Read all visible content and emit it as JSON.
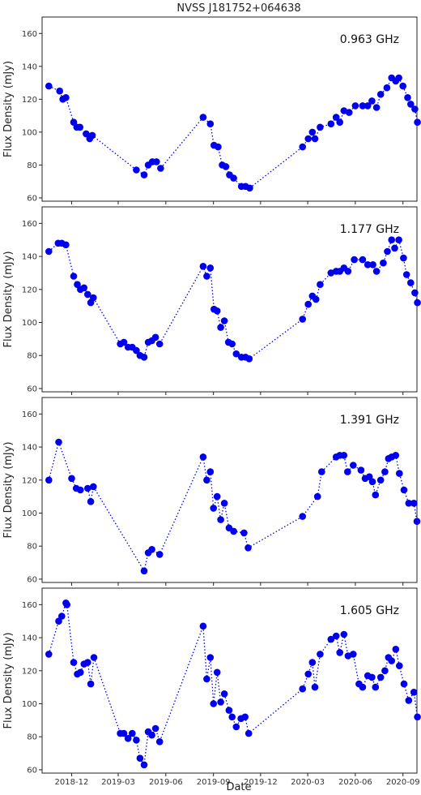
{
  "figure": {
    "title": "NVSS J181752+064638",
    "xlabel": "Date",
    "ylabel": "Flux Density (mJy)"
  },
  "chart_data": {
    "type": "scatter",
    "line_style": "dotted",
    "marker": "filled-circle",
    "color": "#0000ee",
    "x_ticks": [
      "2018-12",
      "2019-03",
      "2019-06",
      "2019-09",
      "2019-12",
      "2020-03",
      "2020-06",
      "2020-09"
    ],
    "xlim": [
      "2018-10-05",
      "2020-09-28"
    ],
    "ylim": [
      58,
      170
    ],
    "y_ticks": [
      60,
      80,
      100,
      120,
      140,
      160
    ],
    "panels": [
      {
        "label": "0.963 GHz",
        "points": [
          [
            "2018-10-18",
            128
          ],
          [
            "2018-11-08",
            125
          ],
          [
            "2018-11-14",
            120
          ],
          [
            "2018-11-20",
            121
          ],
          [
            "2018-12-05",
            106
          ],
          [
            "2018-12-11",
            103
          ],
          [
            "2018-12-17",
            103
          ],
          [
            "2018-12-29",
            99
          ],
          [
            "2019-01-05",
            96
          ],
          [
            "2019-01-10",
            98
          ],
          [
            "2019-04-05",
            77
          ],
          [
            "2019-04-20",
            74
          ],
          [
            "2019-04-28",
            80
          ],
          [
            "2019-05-06",
            82
          ],
          [
            "2019-05-14",
            82
          ],
          [
            "2019-05-22",
            78
          ],
          [
            "2019-08-12",
            109
          ],
          [
            "2019-08-26",
            105
          ],
          [
            "2019-09-02",
            92
          ],
          [
            "2019-09-10",
            91
          ],
          [
            "2019-09-18",
            80
          ],
          [
            "2019-09-25",
            79
          ],
          [
            "2019-10-02",
            74
          ],
          [
            "2019-10-10",
            72
          ],
          [
            "2019-10-25",
            67
          ],
          [
            "2019-11-02",
            67
          ],
          [
            "2019-11-10",
            66
          ],
          [
            "2020-02-20",
            91
          ],
          [
            "2020-03-02",
            96
          ],
          [
            "2020-03-10",
            100
          ],
          [
            "2020-03-15",
            96
          ],
          [
            "2020-03-25",
            103
          ],
          [
            "2020-04-15",
            105
          ],
          [
            "2020-04-25",
            109
          ],
          [
            "2020-05-02",
            106
          ],
          [
            "2020-05-10",
            113
          ],
          [
            "2020-05-20",
            112
          ],
          [
            "2020-06-01",
            116
          ],
          [
            "2020-06-15",
            116
          ],
          [
            "2020-06-25",
            116
          ],
          [
            "2020-07-03",
            119
          ],
          [
            "2020-07-12",
            115
          ],
          [
            "2020-07-20",
            123
          ],
          [
            "2020-08-01",
            127
          ],
          [
            "2020-08-10",
            133
          ],
          [
            "2020-08-18",
            131
          ],
          [
            "2020-08-24",
            133
          ],
          [
            "2020-09-01",
            128
          ],
          [
            "2020-09-10",
            121
          ],
          [
            "2020-09-16",
            117
          ],
          [
            "2020-09-24",
            114
          ],
          [
            "2020-09-29",
            106
          ]
        ]
      },
      {
        "label": "1.177 GHz",
        "points": [
          [
            "2018-10-18",
            143
          ],
          [
            "2018-11-05",
            148
          ],
          [
            "2018-11-12",
            148
          ],
          [
            "2018-11-20",
            147
          ],
          [
            "2018-12-05",
            128
          ],
          [
            "2018-12-12",
            123
          ],
          [
            "2018-12-18",
            120
          ],
          [
            "2018-12-25",
            121
          ],
          [
            "2019-01-01",
            117
          ],
          [
            "2019-01-07",
            112
          ],
          [
            "2019-01-12",
            115
          ],
          [
            "2019-03-05",
            87
          ],
          [
            "2019-03-12",
            88
          ],
          [
            "2019-03-20",
            85
          ],
          [
            "2019-03-28",
            85
          ],
          [
            "2019-04-05",
            83
          ],
          [
            "2019-04-12",
            80
          ],
          [
            "2019-04-20",
            79
          ],
          [
            "2019-04-28",
            88
          ],
          [
            "2019-05-05",
            89
          ],
          [
            "2019-05-12",
            91
          ],
          [
            "2019-05-20",
            87
          ],
          [
            "2019-08-12",
            134
          ],
          [
            "2019-08-19",
            128
          ],
          [
            "2019-08-26",
            133
          ],
          [
            "2019-09-02",
            108
          ],
          [
            "2019-09-08",
            107
          ],
          [
            "2019-09-15",
            97
          ],
          [
            "2019-09-22",
            101
          ],
          [
            "2019-09-30",
            88
          ],
          [
            "2019-10-07",
            87
          ],
          [
            "2019-10-15",
            81
          ],
          [
            "2019-10-25",
            79
          ],
          [
            "2019-11-02",
            79
          ],
          [
            "2019-11-09",
            78
          ],
          [
            "2020-02-20",
            102
          ],
          [
            "2020-03-02",
            111
          ],
          [
            "2020-03-10",
            116
          ],
          [
            "2020-03-17",
            114
          ],
          [
            "2020-03-25",
            123
          ],
          [
            "2020-04-15",
            130
          ],
          [
            "2020-04-25",
            131
          ],
          [
            "2020-05-02",
            131
          ],
          [
            "2020-05-10",
            133
          ],
          [
            "2020-05-18",
            131
          ],
          [
            "2020-05-30",
            138
          ],
          [
            "2020-06-15",
            138
          ],
          [
            "2020-06-25",
            135
          ],
          [
            "2020-07-05",
            135
          ],
          [
            "2020-07-12",
            131
          ],
          [
            "2020-07-25",
            136
          ],
          [
            "2020-08-02",
            143
          ],
          [
            "2020-08-10",
            150
          ],
          [
            "2020-08-16",
            145
          ],
          [
            "2020-08-24",
            150
          ],
          [
            "2020-09-02",
            139
          ],
          [
            "2020-09-08",
            129
          ],
          [
            "2020-09-16",
            124
          ],
          [
            "2020-09-24",
            118
          ],
          [
            "2020-09-29",
            112
          ]
        ]
      },
      {
        "label": "1.391 GHz",
        "points": [
          [
            "2018-10-18",
            120
          ],
          [
            "2018-11-06",
            143
          ],
          [
            "2018-12-01",
            121
          ],
          [
            "2018-12-10",
            115
          ],
          [
            "2018-12-18",
            114
          ],
          [
            "2019-01-01",
            115
          ],
          [
            "2019-01-07",
            107
          ],
          [
            "2019-01-12",
            116
          ],
          [
            "2019-04-20",
            65
          ],
          [
            "2019-04-28",
            76
          ],
          [
            "2019-05-05",
            78
          ],
          [
            "2019-05-20",
            75
          ],
          [
            "2019-08-12",
            134
          ],
          [
            "2019-08-19",
            120
          ],
          [
            "2019-08-26",
            125
          ],
          [
            "2019-09-01",
            103
          ],
          [
            "2019-09-08",
            110
          ],
          [
            "2019-09-15",
            96
          ],
          [
            "2019-09-22",
            106
          ],
          [
            "2019-10-01",
            91
          ],
          [
            "2019-10-10",
            89
          ],
          [
            "2019-10-30",
            88
          ],
          [
            "2019-11-07",
            79
          ],
          [
            "2020-02-20",
            98
          ],
          [
            "2020-03-20",
            110
          ],
          [
            "2020-03-28",
            125
          ],
          [
            "2020-04-25",
            134
          ],
          [
            "2020-05-02",
            135
          ],
          [
            "2020-05-10",
            135
          ],
          [
            "2020-05-17",
            125
          ],
          [
            "2020-05-28",
            129
          ],
          [
            "2020-06-12",
            126
          ],
          [
            "2020-06-20",
            121
          ],
          [
            "2020-06-28",
            122
          ],
          [
            "2020-07-04",
            119
          ],
          [
            "2020-07-10",
            111
          ],
          [
            "2020-07-20",
            120
          ],
          [
            "2020-07-28",
            125
          ],
          [
            "2020-08-04",
            133
          ],
          [
            "2020-08-10",
            134
          ],
          [
            "2020-08-18",
            135
          ],
          [
            "2020-08-25",
            124
          ],
          [
            "2020-09-03",
            114
          ],
          [
            "2020-09-12",
            106
          ],
          [
            "2020-09-22",
            106
          ],
          [
            "2020-09-28",
            95
          ]
        ]
      },
      {
        "label": "1.605 GHz",
        "points": [
          [
            "2018-10-18",
            130
          ],
          [
            "2018-11-06",
            150
          ],
          [
            "2018-11-12",
            153
          ],
          [
            "2018-11-20",
            161
          ],
          [
            "2018-11-22",
            160
          ],
          [
            "2018-12-05",
            125
          ],
          [
            "2018-12-12",
            118
          ],
          [
            "2018-12-18",
            119
          ],
          [
            "2018-12-25",
            124
          ],
          [
            "2019-01-01",
            125
          ],
          [
            "2019-01-07",
            112
          ],
          [
            "2019-01-13",
            128
          ],
          [
            "2019-03-05",
            82
          ],
          [
            "2019-03-12",
            82
          ],
          [
            "2019-03-20",
            79
          ],
          [
            "2019-03-28",
            82
          ],
          [
            "2019-04-05",
            78
          ],
          [
            "2019-04-12",
            67
          ],
          [
            "2019-04-20",
            63
          ],
          [
            "2019-04-28",
            83
          ],
          [
            "2019-05-05",
            81
          ],
          [
            "2019-05-12",
            85
          ],
          [
            "2019-05-20",
            77
          ],
          [
            "2019-08-12",
            147
          ],
          [
            "2019-08-19",
            115
          ],
          [
            "2019-08-26",
            128
          ],
          [
            "2019-09-01",
            100
          ],
          [
            "2019-09-08",
            119
          ],
          [
            "2019-09-15",
            101
          ],
          [
            "2019-09-22",
            106
          ],
          [
            "2019-10-01",
            96
          ],
          [
            "2019-10-07",
            92
          ],
          [
            "2019-10-15",
            86
          ],
          [
            "2019-10-24",
            91
          ],
          [
            "2019-11-01",
            92
          ],
          [
            "2019-11-08",
            82
          ],
          [
            "2020-02-20",
            109
          ],
          [
            "2020-03-02",
            118
          ],
          [
            "2020-03-10",
            125
          ],
          [
            "2020-03-15",
            110
          ],
          [
            "2020-03-25",
            130
          ],
          [
            "2020-04-15",
            139
          ],
          [
            "2020-04-25",
            141
          ],
          [
            "2020-05-02",
            131
          ],
          [
            "2020-05-10",
            142
          ],
          [
            "2020-05-18",
            129
          ],
          [
            "2020-05-28",
            130
          ],
          [
            "2020-06-08",
            112
          ],
          [
            "2020-06-15",
            110
          ],
          [
            "2020-06-25",
            117
          ],
          [
            "2020-07-03",
            116
          ],
          [
            "2020-07-10",
            110
          ],
          [
            "2020-07-20",
            116
          ],
          [
            "2020-07-28",
            120
          ],
          [
            "2020-08-04",
            128
          ],
          [
            "2020-08-10",
            126
          ],
          [
            "2020-08-18",
            133
          ],
          [
            "2020-08-25",
            123
          ],
          [
            "2020-09-03",
            112
          ],
          [
            "2020-09-12",
            102
          ],
          [
            "2020-09-22",
            107
          ],
          [
            "2020-09-29",
            92
          ]
        ]
      }
    ]
  }
}
